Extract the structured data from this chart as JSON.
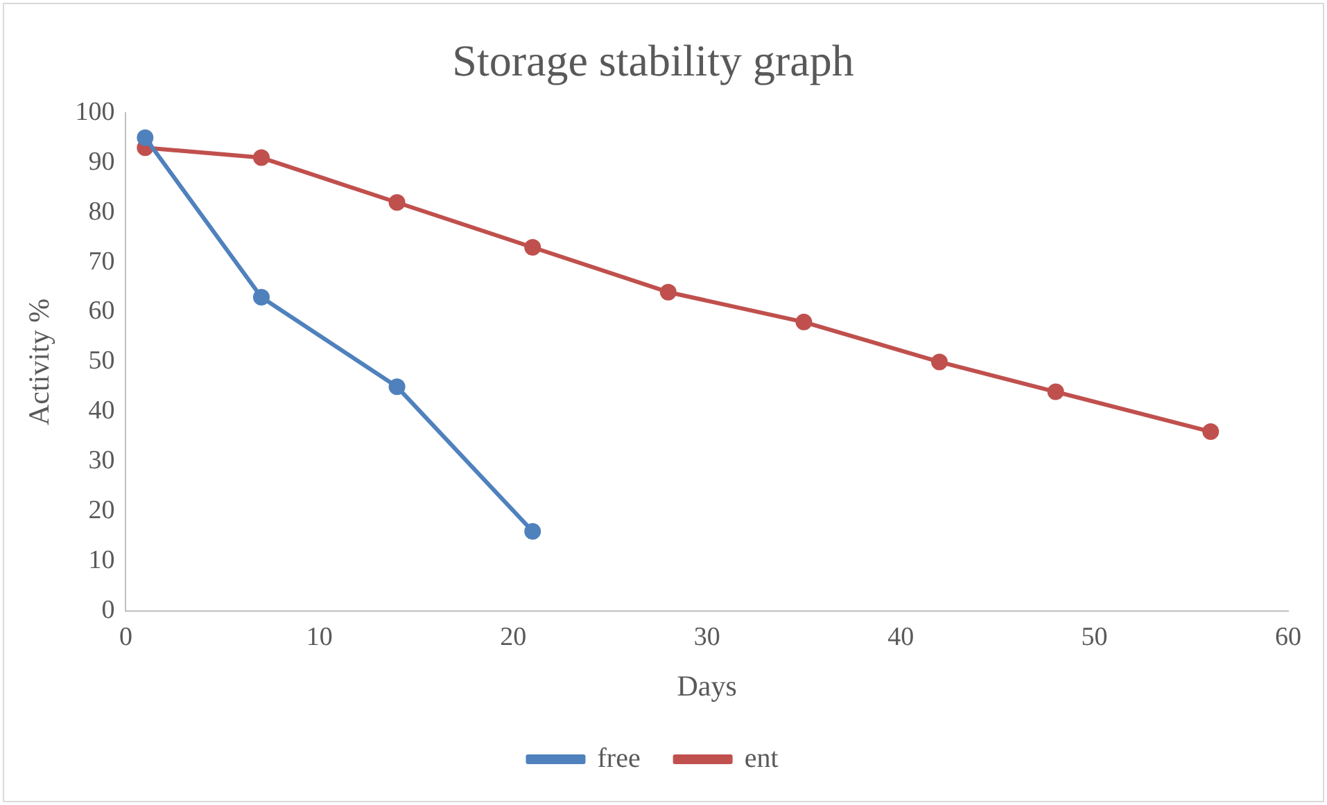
{
  "chart_data": {
    "type": "line",
    "title": "Storage stability graph",
    "xlabel": "Days",
    "ylabel": "Activity %",
    "xlim": [
      0,
      60
    ],
    "xticks": [
      0,
      10,
      20,
      30,
      40,
      50,
      60
    ],
    "ylim": [
      0,
      100
    ],
    "yticks": [
      0,
      10,
      20,
      30,
      40,
      50,
      60,
      70,
      80,
      90,
      100
    ],
    "grid": false,
    "legend": "bottom",
    "marker": "circle",
    "line_style": "solid",
    "series": [
      {
        "name": "free",
        "color": "#4f81bd",
        "x": [
          1,
          7,
          14,
          21
        ],
        "values": [
          95,
          63,
          45,
          16
        ]
      },
      {
        "name": "ent",
        "color": "#c0504d",
        "x": [
          1,
          7,
          14,
          21,
          28,
          35,
          42,
          48,
          56
        ],
        "values": [
          93,
          91,
          82,
          73,
          64,
          58,
          50,
          44,
          36
        ]
      }
    ]
  }
}
